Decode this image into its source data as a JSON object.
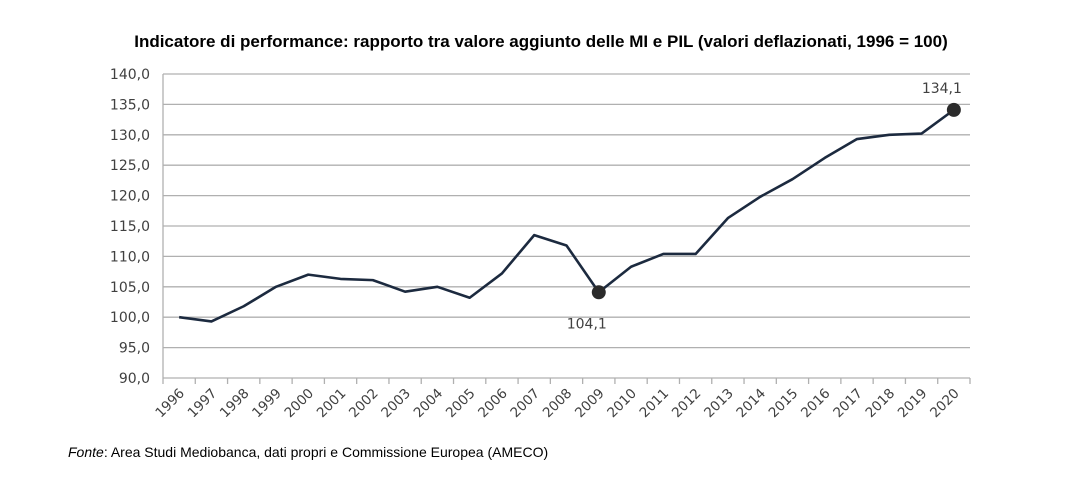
{
  "chart_data": {
    "type": "line",
    "title": "Indicatore di performance: rapporto tra valore aggiunto delle MI e PIL (valori deflazionati, 1996 = 100)",
    "xlabel": "",
    "ylabel": "",
    "ylim": [
      90,
      140
    ],
    "yticks": [
      "90,0",
      "95,0",
      "100,0",
      "105,0",
      "110,0",
      "115,0",
      "120,0",
      "125,0",
      "130,0",
      "135,0",
      "140,0"
    ],
    "grid": true,
    "categories": [
      "1996",
      "1997",
      "1998",
      "1999",
      "2000",
      "2001",
      "2002",
      "2003",
      "2004",
      "2005",
      "2006",
      "2007",
      "2008",
      "2009",
      "2010",
      "2011",
      "2012",
      "2013",
      "2014",
      "2015",
      "2016",
      "2017",
      "2018",
      "2019",
      "2020"
    ],
    "series": [
      {
        "name": "Indicatore di performance",
        "color": "#1c2a3f",
        "values": [
          100.0,
          99.3,
          101.8,
          105.0,
          107.0,
          106.3,
          106.1,
          104.2,
          105.0,
          103.2,
          107.2,
          113.5,
          111.8,
          104.1,
          108.3,
          110.4,
          110.4,
          116.3,
          119.8,
          122.7,
          126.2,
          129.3,
          130.0,
          130.2,
          134.1
        ]
      }
    ],
    "annotations": [
      {
        "category": "2009",
        "label": "104,1",
        "position": "below"
      },
      {
        "category": "2020",
        "label": "134,1",
        "position": "above"
      }
    ]
  },
  "source": {
    "prefix": "Fonte",
    "text": ": Area Studi Mediobanca, dati propri e Commissione Europea (AMECO)"
  }
}
